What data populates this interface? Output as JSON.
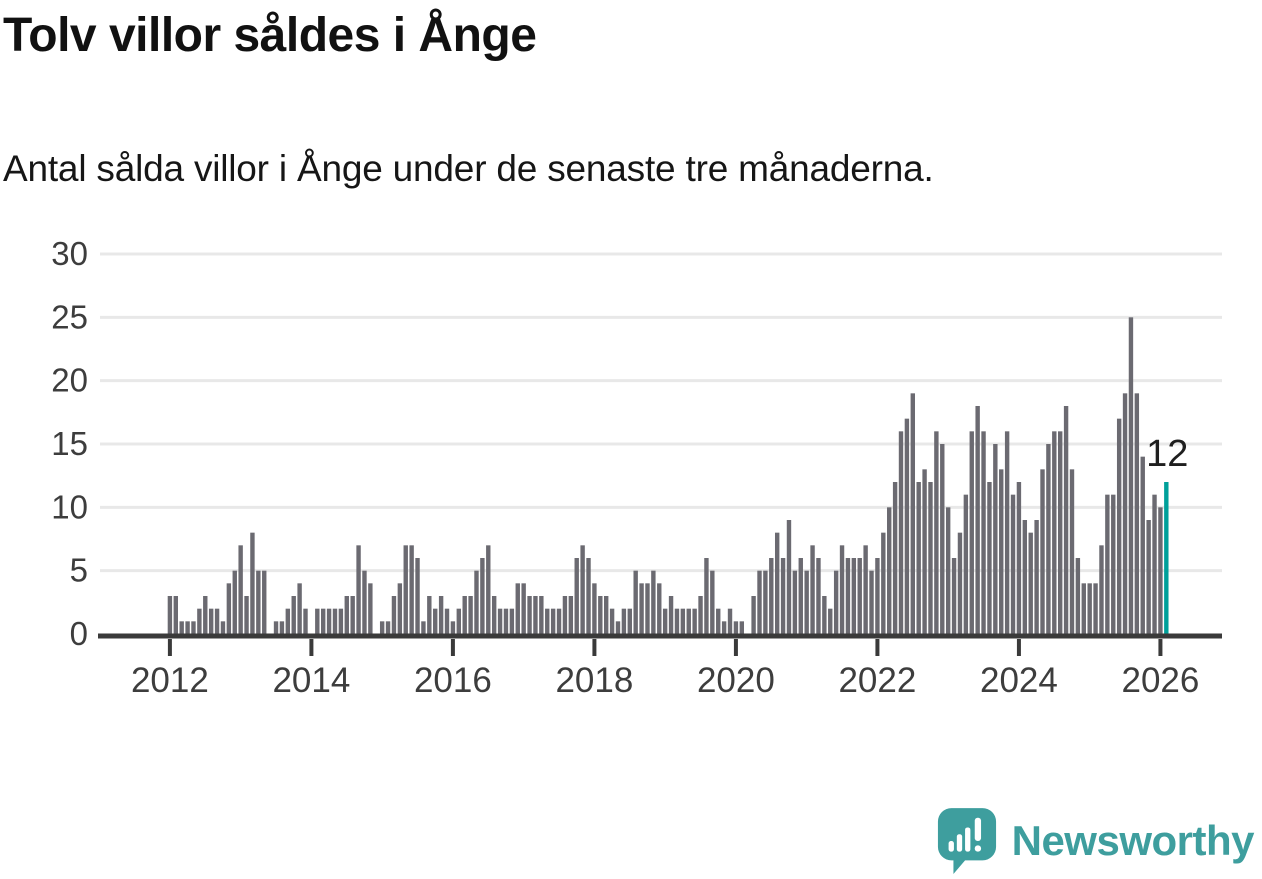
{
  "header": {
    "title": "Tolv villor såldes i Ånge",
    "subtitle": "Antal sålda villor i Ånge under de senaste tre månaderna."
  },
  "chart_data": {
    "type": "bar",
    "title": "Tolv villor såldes i Ånge",
    "xlabel": "",
    "ylabel": "",
    "ylim": [
      0,
      30
    ],
    "grid": true,
    "y_ticks": [
      0,
      5,
      10,
      15,
      20,
      25,
      30
    ],
    "x_ticks": [
      "2012",
      "2014",
      "2016",
      "2018",
      "2020",
      "2022",
      "2024",
      "2026"
    ],
    "start_month": "2012-01",
    "end_month": "2026-02",
    "values": [
      3,
      3,
      1,
      1,
      1,
      2,
      3,
      2,
      2,
      1,
      4,
      5,
      7,
      3,
      8,
      5,
      5,
      0,
      1,
      1,
      2,
      3,
      4,
      2,
      0,
      2,
      2,
      2,
      2,
      2,
      3,
      3,
      7,
      5,
      4,
      0,
      1,
      1,
      3,
      4,
      7,
      7,
      6,
      1,
      3,
      2,
      3,
      2,
      1,
      2,
      3,
      3,
      5,
      6,
      7,
      3,
      2,
      2,
      2,
      4,
      4,
      3,
      3,
      3,
      2,
      2,
      2,
      3,
      3,
      6,
      7,
      6,
      4,
      3,
      3,
      2,
      1,
      2,
      2,
      5,
      4,
      4,
      5,
      4,
      2,
      3,
      2,
      2,
      2,
      2,
      3,
      6,
      5,
      2,
      1,
      2,
      1,
      1,
      0,
      3,
      5,
      5,
      6,
      8,
      6,
      9,
      5,
      6,
      5,
      7,
      6,
      3,
      2,
      5,
      7,
      6,
      6,
      6,
      7,
      5,
      6,
      8,
      10,
      12,
      16,
      17,
      19,
      12,
      13,
      12,
      16,
      15,
      10,
      6,
      8,
      11,
      16,
      18,
      16,
      12,
      15,
      13,
      16,
      11,
      12,
      9,
      8,
      9,
      13,
      15,
      16,
      16,
      18,
      13,
      6,
      4,
      4,
      4,
      7,
      11,
      11,
      17,
      19,
      25,
      19,
      14,
      9,
      11,
      10,
      12
    ],
    "bar_color": "#6b6a71",
    "highlight": {
      "position": "last",
      "value": 12,
      "label": "12",
      "color": "#00a09a"
    },
    "legend": null
  },
  "footer": {
    "logo_text": "Newsworthy",
    "logo_icon": "speech-bubble-bar-chart-icon",
    "brand_color": "#3e9e9e"
  }
}
